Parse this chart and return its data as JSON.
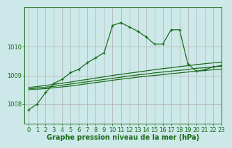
{
  "background_color": "#cce8e8",
  "plot_bg_color": "#cce8e8",
  "grid_color": "#b0b0b0",
  "line_color": "#1a6b1a",
  "marker_color": "#1a6b1a",
  "xlabel": "Graphe pression niveau de la mer (hPa)",
  "xlabel_fontsize": 7,
  "tick_fontsize": 6,
  "xlim": [
    -0.5,
    23
  ],
  "ylim": [
    1007.3,
    1011.4
  ],
  "yticks": [
    1008,
    1009,
    1010
  ],
  "xticks": [
    0,
    1,
    2,
    3,
    4,
    5,
    6,
    7,
    8,
    9,
    10,
    11,
    12,
    13,
    14,
    15,
    16,
    17,
    18,
    19,
    20,
    21,
    22,
    23
  ],
  "series1": {
    "x": [
      0,
      1,
      2,
      3,
      4,
      5,
      6,
      7,
      8,
      9,
      10,
      11,
      12,
      13,
      14,
      15,
      16,
      17,
      18,
      19,
      20,
      21,
      22,
      23
    ],
    "y": [
      1008.5,
      1008.52,
      1008.54,
      1008.57,
      1008.6,
      1008.63,
      1008.67,
      1008.71,
      1008.75,
      1008.79,
      1008.83,
      1008.87,
      1008.9,
      1008.94,
      1008.97,
      1009.0,
      1009.03,
      1009.06,
      1009.09,
      1009.12,
      1009.15,
      1009.17,
      1009.2,
      1009.22
    ]
  },
  "series2": {
    "x": [
      0,
      1,
      2,
      3,
      4,
      5,
      6,
      7,
      8,
      9,
      10,
      11,
      12,
      13,
      14,
      15,
      16,
      17,
      18,
      19,
      20,
      21,
      22,
      23
    ],
    "y": [
      1008.53,
      1008.56,
      1008.59,
      1008.62,
      1008.66,
      1008.7,
      1008.74,
      1008.78,
      1008.82,
      1008.86,
      1008.9,
      1008.94,
      1008.98,
      1009.02,
      1009.05,
      1009.09,
      1009.12,
      1009.15,
      1009.18,
      1009.21,
      1009.25,
      1009.27,
      1009.3,
      1009.32
    ]
  },
  "series3": {
    "x": [
      0,
      1,
      2,
      3,
      4,
      5,
      6,
      7,
      8,
      9,
      10,
      11,
      12,
      13,
      14,
      15,
      16,
      17,
      18,
      19,
      20,
      21,
      22,
      23
    ],
    "y": [
      1008.58,
      1008.61,
      1008.65,
      1008.69,
      1008.73,
      1008.77,
      1008.82,
      1008.86,
      1008.91,
      1008.95,
      1009.0,
      1009.04,
      1009.08,
      1009.12,
      1009.16,
      1009.2,
      1009.24,
      1009.27,
      1009.31,
      1009.34,
      1009.38,
      1009.41,
      1009.44,
      1009.47
    ]
  },
  "series_main": {
    "x": [
      0,
      1,
      2,
      3,
      4,
      5,
      6,
      7,
      8,
      9,
      10,
      11,
      12,
      13,
      14,
      15,
      16,
      17,
      18,
      19,
      20,
      21,
      22,
      23
    ],
    "y": [
      1007.8,
      1008.0,
      1008.4,
      1008.72,
      1008.87,
      1009.1,
      1009.22,
      1009.45,
      1009.62,
      1009.8,
      1010.75,
      1010.85,
      1010.7,
      1010.55,
      1010.35,
      1010.1,
      1010.1,
      1010.6,
      1010.6,
      1009.4,
      1009.15,
      1009.2,
      1009.3,
      1009.35
    ]
  }
}
